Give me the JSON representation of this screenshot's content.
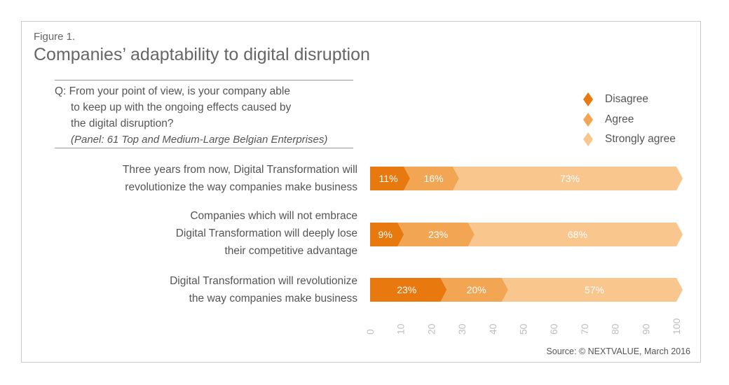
{
  "figure_label": "Figure 1.",
  "title": "Companies’ adaptability to digital disruption",
  "question": {
    "lines": [
      "Q: From your point of view, is your company able",
      "to keep up with the ongoing effects caused by",
      "the digital disruption?"
    ],
    "panel": "(Panel: 61 Top and Medium-Large Belgian Enterprises)"
  },
  "legend": [
    {
      "label": "Disagree",
      "color": "#e8790f"
    },
    {
      "label": "Agree",
      "color": "#f2a654"
    },
    {
      "label": "Strongly agree",
      "color": "#f9c68e"
    }
  ],
  "source": "Source: © NEXTVALUE, March 2016",
  "chart_data": {
    "type": "bar",
    "orientation": "horizontal",
    "stacked": true,
    "categories": [
      "Three years from now, Digital Transformation will revolutionize the way companies make business",
      "Companies which will not embrace Digital Transformation will deeply lose their competitive advantage",
      "Digital Transformation will revolutionize the way companies make business"
    ],
    "category_lines": [
      [
        "Three years from now, Digital Transformation will",
        "revolutionize the way companies make business"
      ],
      [
        "Companies which will not embrace",
        "Digital Transformation will deeply lose",
        "their competitive advantage"
      ],
      [
        "Digital Transformation will revolutionize",
        "the way companies make business"
      ]
    ],
    "series": [
      {
        "name": "Disagree",
        "values": [
          11,
          9,
          23
        ],
        "labels": [
          "11%",
          "9%",
          "23%"
        ],
        "color": "#e8790f"
      },
      {
        "name": "Agree",
        "values": [
          16,
          23,
          20
        ],
        "labels": [
          "16%",
          "23%",
          "20%"
        ],
        "color": "#f2a654"
      },
      {
        "name": "Strongly agree",
        "values": [
          73,
          68,
          57
        ],
        "labels": [
          "73%",
          "68%",
          "57%"
        ],
        "color": "#f9c68e"
      }
    ],
    "xlim": [
      0,
      100
    ],
    "xticks": [
      "0",
      "10",
      "20",
      "30",
      "40",
      "50",
      "60",
      "70",
      "80",
      "90",
      "100"
    ],
    "legend_position": "top-right",
    "grid": false
  }
}
